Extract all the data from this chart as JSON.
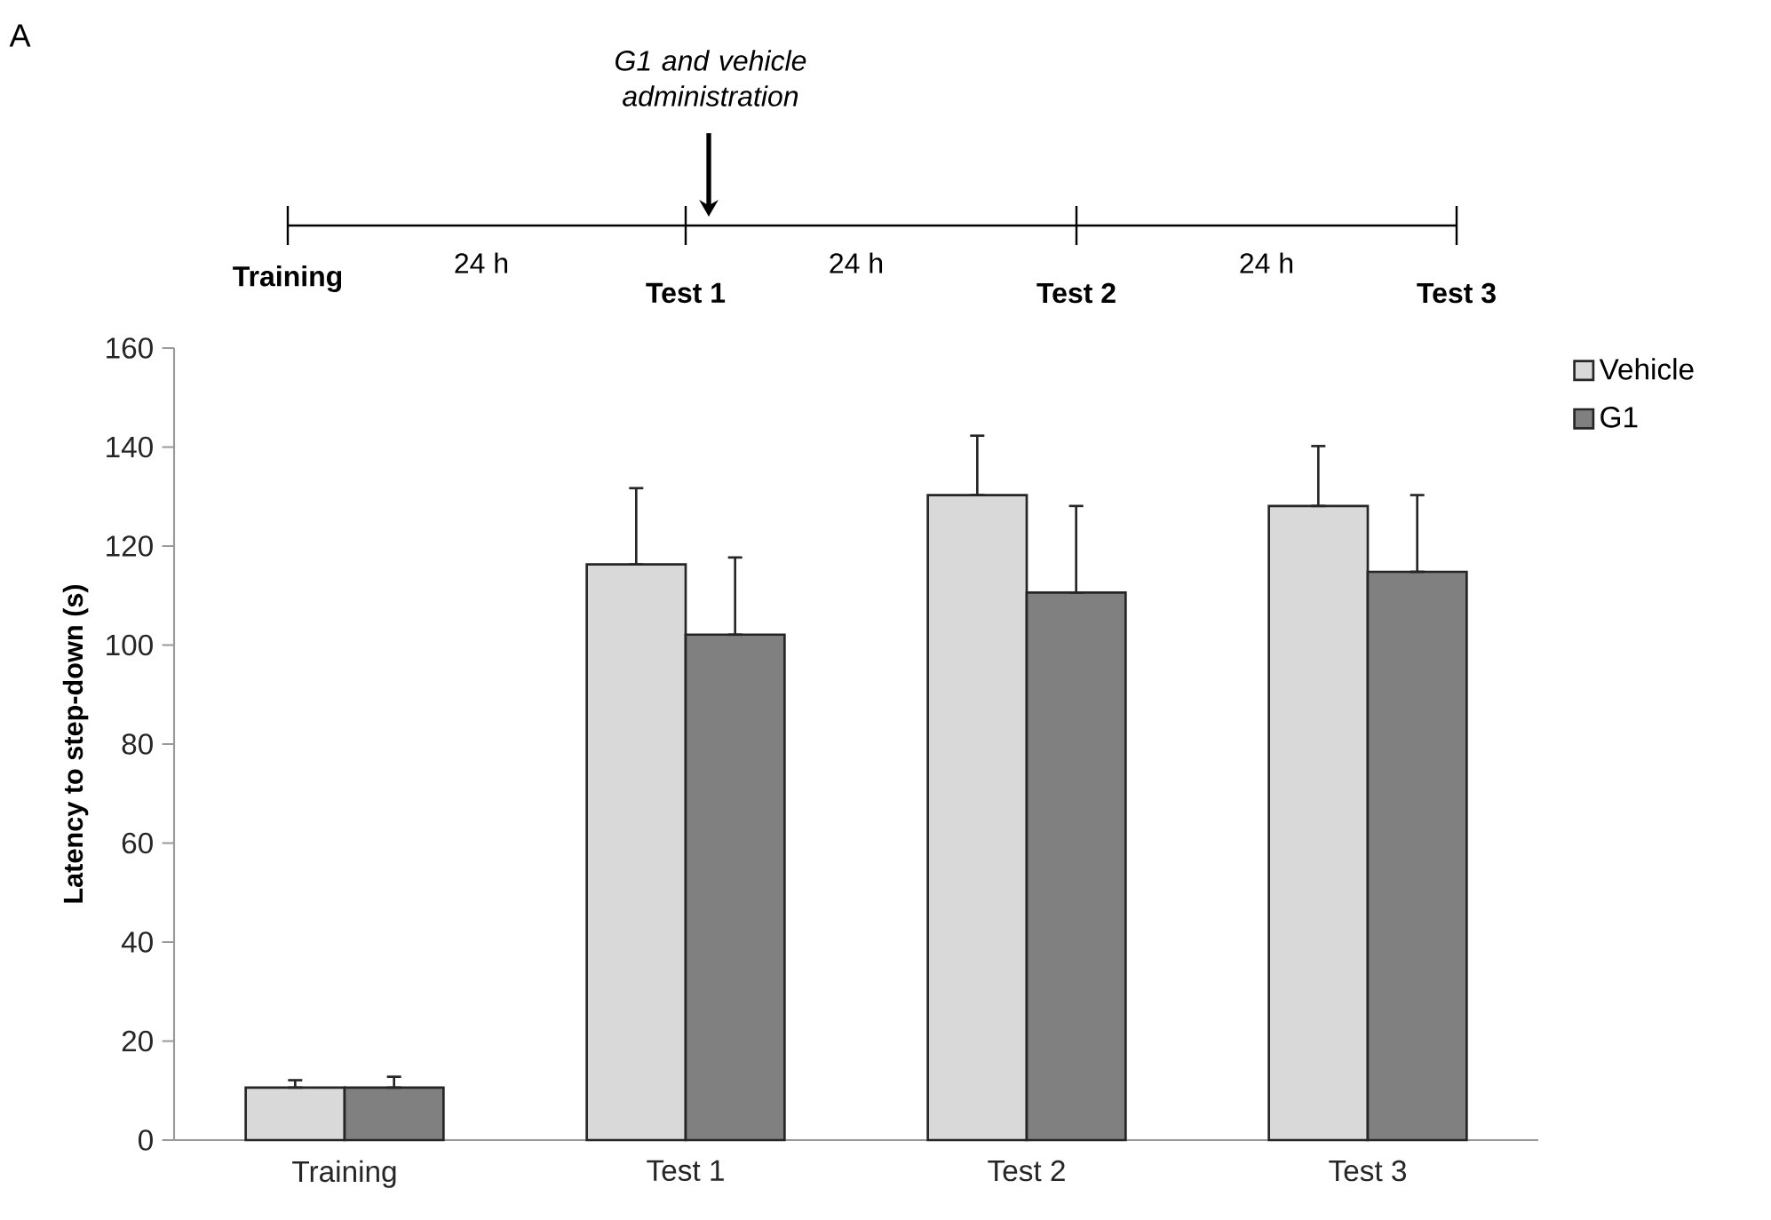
{
  "chart_data": {
    "type": "bar",
    "ylabel": "Latency to step-down (s)",
    "categories": [
      "Training",
      "Test 1",
      "Test 2",
      "Test 3"
    ],
    "series": [
      {
        "name": "Vehicle",
        "color": "#d9d9d9",
        "values": [
          10.6,
          116.3,
          130.3,
          128.1
        ],
        "errors": [
          [
            10.6,
            12.1
          ],
          [
            116.3,
            131.7
          ],
          [
            130.3,
            142.3
          ],
          [
            128.1,
            140.2
          ]
        ]
      },
      {
        "name": "G1",
        "color": "#808080",
        "values": [
          10.6,
          102.1,
          110.6,
          114.8
        ],
        "errors": [
          [
            10.6,
            12.8
          ],
          [
            102.1,
            117.7
          ],
          [
            110.6,
            128.1
          ],
          [
            114.8,
            130.3
          ]
        ]
      }
    ],
    "ylim": [
      0,
      160
    ],
    "yticks": [
      0,
      20,
      40,
      60,
      80,
      100,
      120,
      140,
      160
    ],
    "grid": false,
    "legend": "top right",
    "annotations": [
      "A",
      "G1 and vehicle administration",
      "Training",
      "24 h",
      "Test 1",
      "24 h",
      "Test 2",
      "24 h",
      "Test 3"
    ]
  }
}
